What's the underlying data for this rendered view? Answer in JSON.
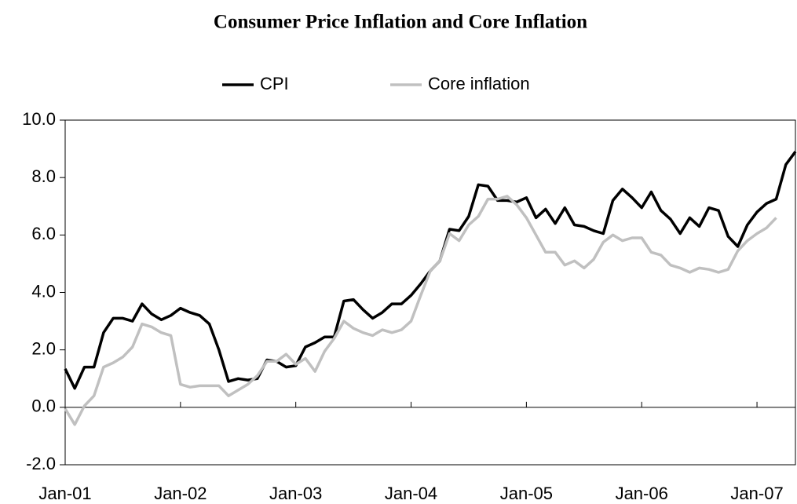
{
  "chart_data": {
    "type": "line",
    "title": "Consumer Price Inflation and Core Inflation",
    "categories": [
      "Jan-01",
      null,
      null,
      null,
      null,
      null,
      null,
      null,
      null,
      null,
      null,
      null,
      "Jan-02",
      null,
      null,
      null,
      null,
      null,
      null,
      null,
      null,
      null,
      null,
      null,
      "Jan-03",
      null,
      null,
      null,
      null,
      null,
      null,
      null,
      null,
      null,
      null,
      null,
      "Jan-04",
      null,
      null,
      null,
      null,
      null,
      null,
      null,
      null,
      null,
      null,
      null,
      "Jan-05",
      null,
      null,
      null,
      null,
      null,
      null,
      null,
      null,
      null,
      null,
      null,
      "Jan-06",
      null,
      null,
      null,
      null,
      null,
      null,
      null,
      null,
      null,
      null,
      null,
      "Jan-07",
      null,
      null,
      null,
      null
    ],
    "series": [
      {
        "name": "CPI",
        "color": "#000000",
        "values": [
          1.34,
          0.66,
          1.4,
          1.4,
          2.6,
          3.1,
          3.1,
          3.0,
          3.6,
          3.25,
          3.05,
          3.2,
          3.45,
          3.3,
          3.2,
          2.9,
          2.0,
          0.9,
          1.0,
          0.95,
          1.0,
          1.65,
          1.6,
          1.4,
          1.45,
          2.1,
          2.25,
          2.45,
          2.45,
          3.7,
          3.75,
          3.4,
          3.1,
          3.3,
          3.6,
          3.6,
          3.9,
          4.3,
          4.75,
          5.1,
          6.2,
          6.15,
          6.65,
          7.75,
          7.7,
          7.2,
          7.2,
          7.15,
          7.3,
          6.6,
          6.9,
          6.4,
          6.95,
          6.35,
          6.3,
          6.15,
          6.05,
          7.2,
          7.6,
          7.3,
          6.95,
          7.5,
          6.85,
          6.55,
          6.05,
          6.6,
          6.3,
          6.95,
          6.85,
          5.95,
          5.6,
          6.35,
          6.8,
          7.1,
          7.25,
          8.45,
          8.9
        ]
      },
      {
        "name": "Core inflation",
        "color": "#c0c0c0",
        "values": [
          -0.05,
          -0.6,
          0.05,
          0.4,
          1.4,
          1.55,
          1.75,
          2.1,
          2.9,
          2.8,
          2.6,
          2.5,
          0.8,
          0.7,
          0.75,
          0.75,
          0.75,
          0.4,
          0.6,
          0.8,
          1.1,
          1.6,
          1.6,
          1.85,
          1.5,
          1.7,
          1.25,
          1.95,
          2.4,
          3.0,
          2.75,
          2.6,
          2.5,
          2.7,
          2.6,
          2.7,
          3.0,
          3.9,
          4.75,
          5.1,
          6.05,
          5.8,
          6.35,
          6.65,
          7.25,
          7.25,
          7.35,
          7.05,
          6.6,
          6.0,
          5.4,
          5.4,
          4.95,
          5.1,
          4.85,
          5.15,
          5.75,
          6.0,
          5.8,
          5.9,
          5.9,
          5.4,
          5.3,
          4.95,
          4.85,
          4.7,
          4.85,
          4.8,
          4.7,
          4.8,
          5.45,
          5.8,
          6.05,
          6.25,
          6.6,
          null,
          null
        ]
      }
    ],
    "ylim": [
      -2,
      10
    ],
    "yticks": [
      {
        "value": -2,
        "label": "-2.0"
      },
      {
        "value": 0,
        "label": "0.0"
      },
      {
        "value": 2,
        "label": "2.0"
      },
      {
        "value": 4,
        "label": "4.0"
      },
      {
        "value": 6,
        "label": "6.0"
      },
      {
        "value": 8,
        "label": "8.0"
      },
      {
        "value": 10,
        "label": "10.0"
      }
    ],
    "legend": "top"
  }
}
